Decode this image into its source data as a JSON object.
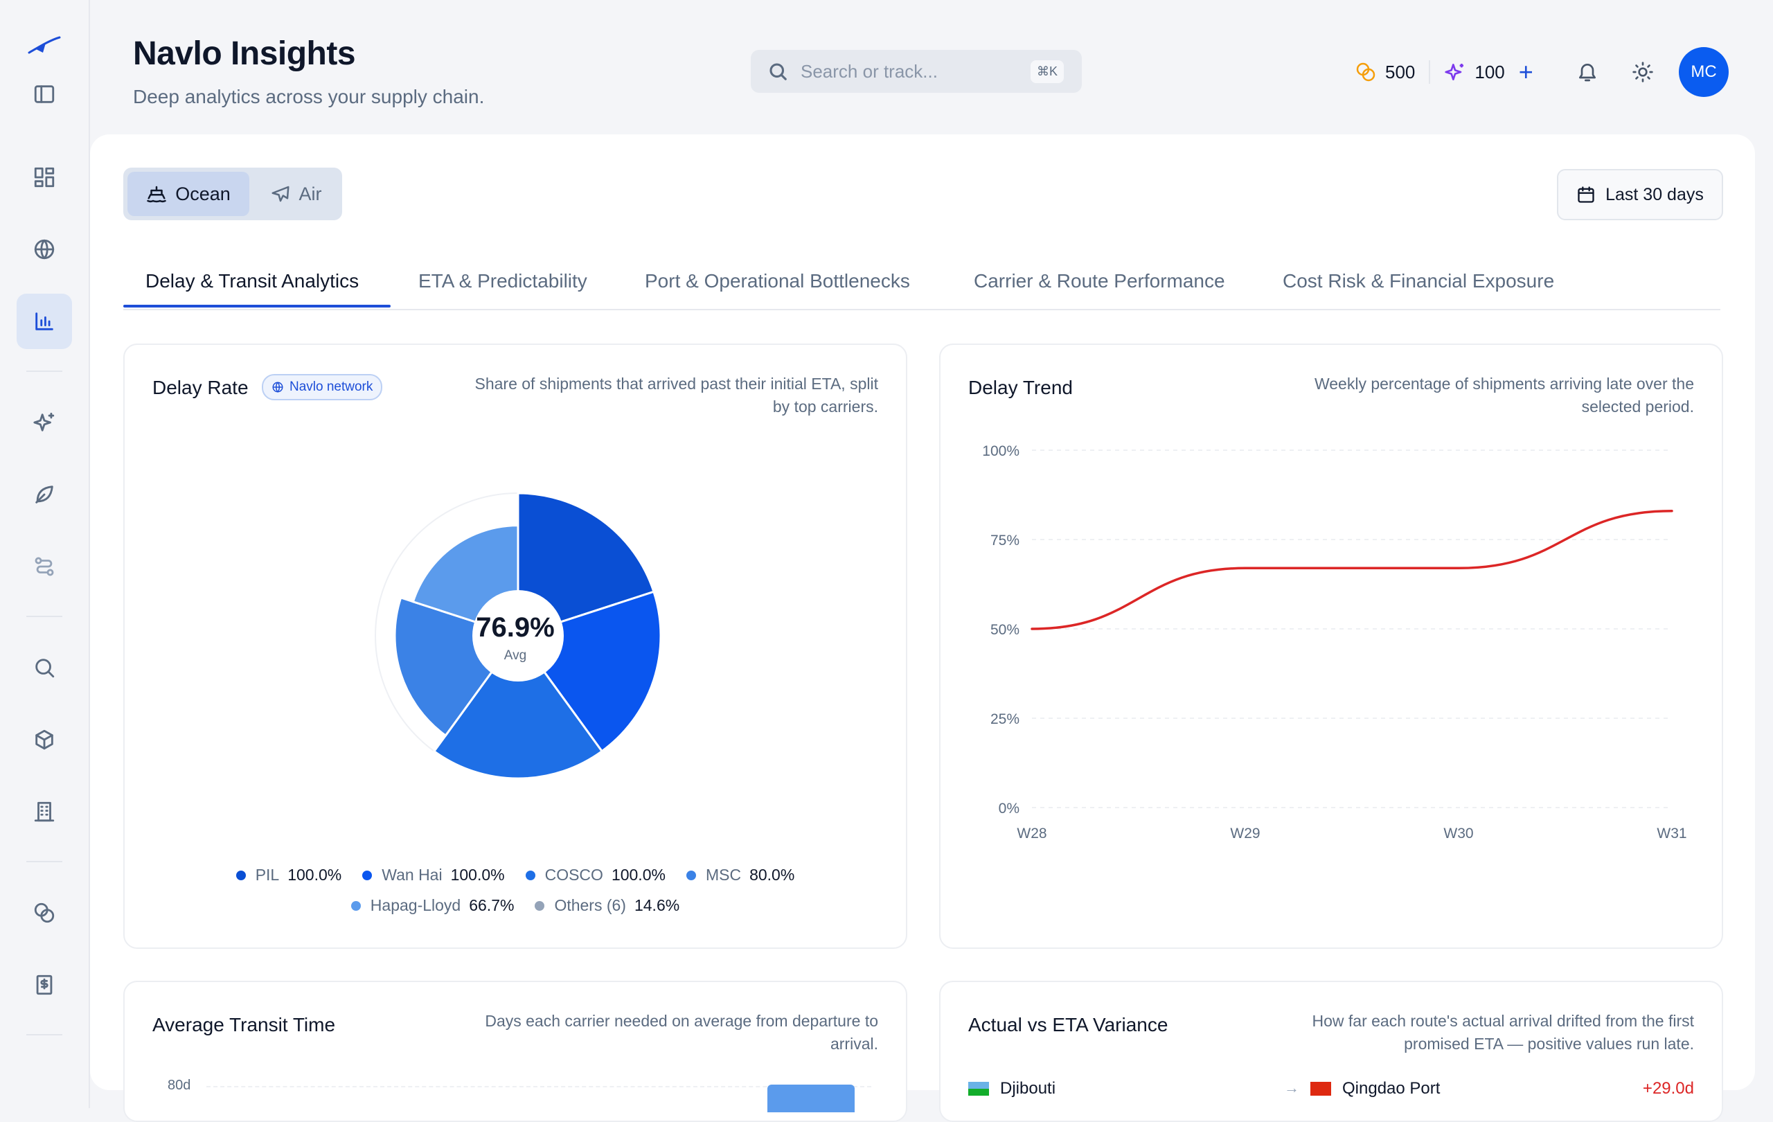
{
  "app": {
    "title": "Navlo Insights",
    "subtitle": "Deep analytics across your supply chain."
  },
  "search": {
    "placeholder": "Search or track...",
    "shortcut": "⌘K"
  },
  "credits": {
    "coins": "500",
    "sparks": "100"
  },
  "user": {
    "initials": "MC"
  },
  "sidebar": {
    "items": [
      {
        "icon": "sidebar-toggle-icon"
      },
      {
        "icon": "dashboard-icon"
      },
      {
        "icon": "globe-icon"
      },
      {
        "icon": "bar-chart-icon",
        "active": true
      },
      {
        "icon": "sparkles-icon"
      },
      {
        "icon": "leaf-icon"
      },
      {
        "icon": "route-icon"
      },
      {
        "icon": "search-icon"
      },
      {
        "icon": "package-icon"
      },
      {
        "icon": "building-icon"
      },
      {
        "icon": "coins-icon"
      },
      {
        "icon": "receipt-icon"
      }
    ]
  },
  "mode": {
    "ocean": "Ocean",
    "air": "Air",
    "selected": "Ocean"
  },
  "date_range": "Last 30 days",
  "tabs": [
    "Delay & Transit Analytics",
    "ETA & Predictability",
    "Port & Operational Bottlenecks",
    "Carrier & Route Performance",
    "Cost Risk & Financial Exposure"
  ],
  "delay_rate": {
    "title": "Delay Rate",
    "badge": "Navlo network",
    "description_line1": "Share of shipments that arrived past their initial ETA, split",
    "description_line2": "by top carriers.",
    "center_value": "76.9%",
    "center_label": "Avg"
  },
  "delay_trend": {
    "title": "Delay Trend",
    "description_line1": "Weekly percentage of shipments arriving late over the",
    "description_line2": "selected period."
  },
  "transit": {
    "title": "Average Transit Time",
    "description_line1": "Days each carrier needed on average from departure to",
    "description_line2": "arrival.",
    "axis_tick": "80d"
  },
  "variance": {
    "title": "Actual vs ETA Variance",
    "description_line1": "How far each route's actual arrival drifted from the first",
    "description_line2": "promised ETA — positive values run late.",
    "row": {
      "origin": "Djibouti",
      "destination": "Qingdao Port",
      "value": "+29.0d"
    }
  },
  "chart_data": [
    {
      "type": "pie",
      "title": "Delay Rate",
      "subtype": "polar-area",
      "series": [
        {
          "name": "PIL",
          "value": 100.0,
          "label": "100.0%",
          "color": "#0a4fd4"
        },
        {
          "name": "Wan Hai",
          "value": 100.0,
          "label": "100.0%",
          "color": "#0a56ef"
        },
        {
          "name": "COSCO",
          "value": 100.0,
          "label": "100.0%",
          "color": "#1e6fe6"
        },
        {
          "name": "MSC",
          "value": 80.0,
          "label": "80.0%",
          "color": "#3b82e6"
        },
        {
          "name": "Hapag-Lloyd",
          "value": 66.7,
          "label": "66.7%",
          "color": "#5b9bec"
        },
        {
          "name": "Others (6)",
          "value": 14.6,
          "label": "14.6%",
          "color": "#94a3b8"
        }
      ],
      "center": "76.9%"
    },
    {
      "type": "line",
      "title": "Delay Trend",
      "x": [
        "W28",
        "W29",
        "W30",
        "W31"
      ],
      "series": [
        {
          "values": [
            50,
            67,
            67,
            83
          ],
          "color": "#dc2626"
        }
      ],
      "ylim": [
        0,
        100
      ],
      "yticks": [
        "0%",
        "25%",
        "50%",
        "75%",
        "100%"
      ],
      "grid": true
    }
  ]
}
